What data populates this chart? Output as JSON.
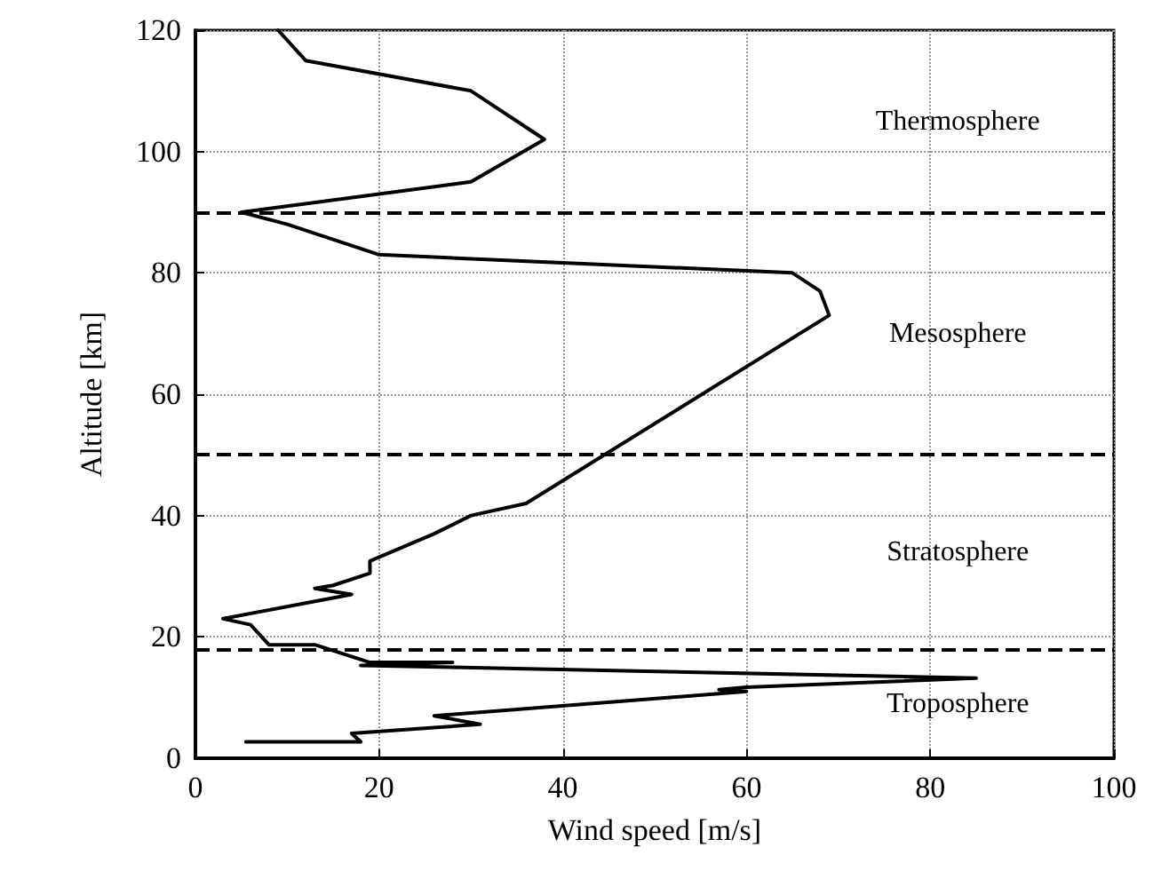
{
  "chart_data": {
    "type": "line",
    "xlabel": "Wind speed [m/s]",
    "ylabel": "Altitude [km]",
    "x": [
      9,
      12,
      30,
      38,
      30,
      5,
      10,
      20,
      35,
      65,
      68,
      69,
      36,
      30,
      26,
      19,
      19,
      15,
      13,
      17,
      3,
      6,
      8,
      13,
      19,
      28,
      18,
      85,
      60,
      57,
      60,
      26,
      31,
      17,
      18,
      5.5
    ],
    "series": [
      {
        "color": "#000000",
        "values": [
          120,
          115,
          110,
          102,
          95,
          90,
          88,
          83,
          82,
          80,
          77,
          73,
          42,
          40,
          37,
          32.5,
          30.5,
          28.5,
          28,
          27,
          23,
          22,
          18.7,
          18.7,
          15.8,
          15.8,
          15.3,
          13.2,
          11.7,
          11.3,
          11,
          7,
          5.6,
          4.1,
          2.7,
          2.7
        ]
      }
    ],
    "xlim": [
      0,
      100
    ],
    "xticks": [
      0,
      20,
      40,
      60,
      80,
      100
    ],
    "ylim": [
      0,
      120
    ],
    "yticks": [
      0,
      20,
      40,
      60,
      80,
      100,
      120
    ],
    "grid": true,
    "marker": "none",
    "line_style": "solid",
    "ref_lines": [
      {
        "axis": "y",
        "value": 90,
        "line_style": "dashed",
        "color": "#000000"
      },
      {
        "axis": "y",
        "value": 50,
        "line_style": "dashed",
        "color": "#000000"
      },
      {
        "axis": "y",
        "value": 18,
        "line_style": "dashed",
        "color": "#000000"
      }
    ],
    "annotations": [
      "Thermosphere",
      "Mesosphere",
      "Stratosphere",
      "Troposphere"
    ]
  }
}
